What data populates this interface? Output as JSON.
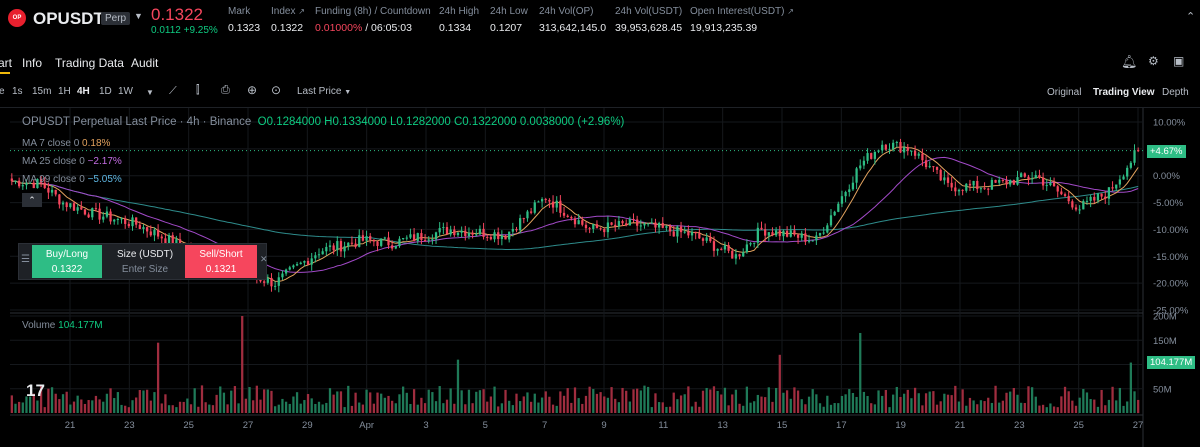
{
  "header": {
    "logo_text": "OP",
    "symbol": "OPUSDT",
    "badge": "Perp",
    "last_price": "0.1322",
    "change": "0.0112 +9.25%",
    "stats": [
      {
        "label": "Mark",
        "value": "0.1323"
      },
      {
        "label": "Index",
        "value": "0.1322"
      },
      {
        "label": "Funding (8h) / Countdown",
        "value_red": "0.01000%",
        "value": "/ 06:05:03"
      },
      {
        "label": "24h High",
        "value": "0.1334"
      },
      {
        "label": "24h Low",
        "value": "0.1207"
      },
      {
        "label": "24h Vol(OP)",
        "value": "313,642,145.0"
      },
      {
        "label": "24h Vol(USDT)",
        "value": "39,953,628.45"
      },
      {
        "label": "Open Interest(USDT)",
        "value": "19,913,235.39"
      }
    ]
  },
  "tabs": [
    "art",
    "Info",
    "Trading Data",
    "Audit"
  ],
  "toolbar": {
    "intervals": [
      "e",
      "1s",
      "15m",
      "1H",
      "4H",
      "1D",
      "1W"
    ],
    "active_interval": "4H",
    "price_type": "Last Price",
    "views": [
      "Original",
      "Trading View",
      "Depth"
    ],
    "active_view": "Trading View"
  },
  "legend": {
    "title": "OPUSDT Perpetual Last Price · 4h · Binance",
    "ohlc": "O0.1284000  H0.1334000  L0.1282000  C0.1322000  0.0038000 (+2.96%)",
    "ma7": {
      "label": "MA 7 close 0",
      "value": "0.18%"
    },
    "ma25": {
      "label": "MA 25 close 0",
      "value": "−2.17%"
    },
    "ma99": {
      "label": "MA 99 close 0",
      "value": "−5.05%"
    },
    "volume_label": "Volume",
    "volume_value": "104.177M"
  },
  "order_widget": {
    "buy_label": "Buy/Long",
    "buy_price": "0.1322",
    "size_label": "Size (USDT)",
    "size_placeholder": "Enter Size",
    "sell_label": "Sell/Short",
    "sell_price": "0.1321"
  },
  "price_tag": "+4.67%",
  "volume_tag": "104.177M",
  "colors": {
    "up": "#2ebd85",
    "down": "#f6465d",
    "ma7": "#e3a35f",
    "ma25": "#a24ac8",
    "ma99": "#2e8b8b"
  },
  "chart_data": {
    "type": "candlestick",
    "y_axis_labels": [
      "10.00%",
      "5.00%",
      "0.00%",
      "-5.00%",
      "-10.00%",
      "-15.00%",
      "-20.00%",
      "-25.00%"
    ],
    "volume_axis_labels": [
      "200M",
      "150M",
      "100M",
      "50M"
    ],
    "x_labels": [
      "21",
      "23",
      "25",
      "27",
      "29",
      "Apr",
      "3",
      "5",
      "7",
      "9",
      "11",
      "13",
      "15",
      "17",
      "19",
      "21",
      "23",
      "25",
      "27"
    ],
    "anchors": [
      {
        "i": 0,
        "pct": -1
      },
      {
        "i": 8,
        "pct": -1.5
      },
      {
        "i": 14,
        "pct": -5
      },
      {
        "i": 22,
        "pct": -7
      },
      {
        "i": 34,
        "pct": -9
      },
      {
        "i": 46,
        "pct": -13
      },
      {
        "i": 58,
        "pct": -17
      },
      {
        "i": 72,
        "pct": -20
      },
      {
        "i": 84,
        "pct": -14
      },
      {
        "i": 96,
        "pct": -12
      },
      {
        "i": 104,
        "pct": -12.5
      },
      {
        "i": 120,
        "pct": -10
      },
      {
        "i": 135,
        "pct": -11
      },
      {
        "i": 146,
        "pct": -4
      },
      {
        "i": 158,
        "pct": -10
      },
      {
        "i": 170,
        "pct": -9
      },
      {
        "i": 186,
        "pct": -11
      },
      {
        "i": 198,
        "pct": -15
      },
      {
        "i": 205,
        "pct": -10
      },
      {
        "i": 220,
        "pct": -12
      },
      {
        "i": 232,
        "pct": 2
      },
      {
        "i": 238,
        "pct": 6
      },
      {
        "i": 246,
        "pct": 5
      },
      {
        "i": 256,
        "pct": -2
      },
      {
        "i": 266,
        "pct": -2
      },
      {
        "i": 280,
        "pct": 0
      },
      {
        "i": 292,
        "pct": -6
      },
      {
        "i": 300,
        "pct": -3
      },
      {
        "i": 308,
        "pct": 4.67
      }
    ],
    "volume_spikes": [
      {
        "i": 40,
        "v": 145
      },
      {
        "i": 63,
        "v": 200
      },
      {
        "i": 122,
        "v": 110
      },
      {
        "i": 232,
        "v": 165
      },
      {
        "i": 210,
        "v": 120
      },
      {
        "i": 306,
        "v": 104
      }
    ]
  }
}
